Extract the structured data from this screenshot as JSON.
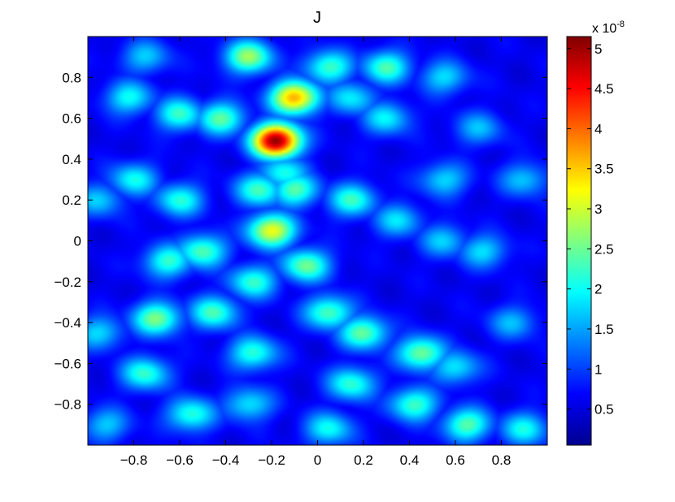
{
  "chart_data": {
    "type": "heatmap",
    "title": "J",
    "xlabel": "",
    "ylabel": "",
    "xlim": [
      -1,
      1
    ],
    "ylim": [
      -1,
      1
    ],
    "x_ticks": [
      "-0.8",
      "-0.6",
      "-0.4",
      "-0.2",
      "0",
      "0.2",
      "0.4",
      "0.6",
      "0.8"
    ],
    "y_ticks": [
      "0.8",
      "0.6",
      "0.4",
      "0.2",
      "0",
      "-0.2",
      "-0.4",
      "-0.6",
      "-0.8"
    ],
    "colorbar": {
      "range": [
        0.05,
        5.15
      ],
      "multiplier_base": "x 10",
      "multiplier_exp": "-8",
      "ticks": [
        "5",
        "4.5",
        "4",
        "3.5",
        "3",
        "2.5",
        "2",
        "1.5",
        "1",
        "0.5"
      ],
      "colormap": "jet"
    },
    "background_level": 0.6,
    "peaks": [
      {
        "x": -0.18,
        "y": 0.49,
        "value": 5.1
      },
      {
        "x": -0.1,
        "y": 0.7,
        "value": 3.7
      },
      {
        "x": -0.2,
        "y": 0.05,
        "value": 3.2
      },
      {
        "x": -0.3,
        "y": 0.9,
        "value": 2.7
      },
      {
        "x": -0.42,
        "y": 0.6,
        "value": 2.4
      },
      {
        "x": -0.6,
        "y": 0.62,
        "value": 2.2
      },
      {
        "x": -0.82,
        "y": 0.7,
        "value": 2.0
      },
      {
        "x": -0.8,
        "y": 0.3,
        "value": 2.0
      },
      {
        "x": -0.6,
        "y": 0.2,
        "value": 2.1
      },
      {
        "x": -0.5,
        "y": -0.05,
        "value": 2.4
      },
      {
        "x": -0.25,
        "y": 0.25,
        "value": 2.3
      },
      {
        "x": -0.1,
        "y": 0.25,
        "value": 2.4
      },
      {
        "x": -0.15,
        "y": 0.33,
        "value": 2.1
      },
      {
        "x": 0.15,
        "y": 0.2,
        "value": 2.2
      },
      {
        "x": 0.05,
        "y": 0.85,
        "value": 2.3
      },
      {
        "x": 0.3,
        "y": 0.85,
        "value": 2.3
      },
      {
        "x": -0.05,
        "y": -0.12,
        "value": 2.5
      },
      {
        "x": -0.28,
        "y": -0.2,
        "value": 2.2
      },
      {
        "x": 0.05,
        "y": -0.35,
        "value": 2.4
      },
      {
        "x": 0.2,
        "y": -0.45,
        "value": 2.5
      },
      {
        "x": 0.45,
        "y": -0.55,
        "value": 2.6
      },
      {
        "x": -0.45,
        "y": -0.35,
        "value": 2.3
      },
      {
        "x": -0.7,
        "y": -0.38,
        "value": 2.6
      },
      {
        "x": -0.65,
        "y": -0.1,
        "value": 2.2
      },
      {
        "x": -0.75,
        "y": -0.65,
        "value": 2.2
      },
      {
        "x": -0.28,
        "y": -0.55,
        "value": 2.2
      },
      {
        "x": -0.3,
        "y": -0.8,
        "value": 1.9
      },
      {
        "x": -0.55,
        "y": -0.85,
        "value": 2.2
      },
      {
        "x": 0.05,
        "y": -0.92,
        "value": 2.0
      },
      {
        "x": 0.15,
        "y": -0.7,
        "value": 2.2
      },
      {
        "x": 0.42,
        "y": -0.8,
        "value": 2.3
      },
      {
        "x": 0.6,
        "y": -0.62,
        "value": 1.9
      },
      {
        "x": 0.65,
        "y": -0.9,
        "value": 2.4
      },
      {
        "x": 0.9,
        "y": -0.92,
        "value": 2.0
      },
      {
        "x": 0.35,
        "y": 0.1,
        "value": 1.8
      },
      {
        "x": 0.55,
        "y": 0.3,
        "value": 1.8
      },
      {
        "x": 0.55,
        "y": 0.0,
        "value": 1.7
      },
      {
        "x": 0.72,
        "y": -0.05,
        "value": 1.8
      },
      {
        "x": 0.9,
        "y": 0.3,
        "value": 1.7
      },
      {
        "x": 0.55,
        "y": 0.8,
        "value": 1.8
      },
      {
        "x": 0.3,
        "y": 0.6,
        "value": 1.9
      },
      {
        "x": 0.15,
        "y": 0.7,
        "value": 1.9
      },
      {
        "x": -0.95,
        "y": 0.2,
        "value": 1.7
      },
      {
        "x": -0.95,
        "y": -0.45,
        "value": 1.8
      },
      {
        "x": -0.92,
        "y": -0.9,
        "value": 1.7
      },
      {
        "x": -0.75,
        "y": 0.9,
        "value": 1.7
      },
      {
        "x": 0.7,
        "y": 0.55,
        "value": 1.6
      },
      {
        "x": 0.85,
        "y": -0.4,
        "value": 1.6
      }
    ]
  }
}
